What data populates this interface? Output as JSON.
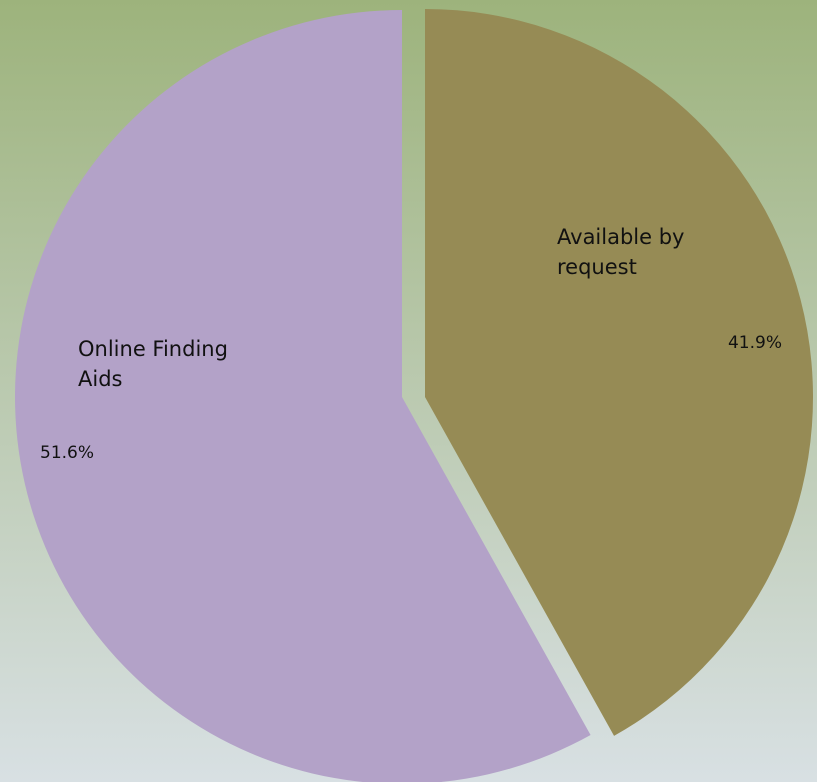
{
  "chart_data": {
    "type": "pie",
    "title": "",
    "exploded": true,
    "slices": [
      {
        "name": "Available by request",
        "name_lines": [
          "Available by",
          "request"
        ],
        "value": 41.9,
        "value_label": "41.9%",
        "color": "#968b55"
      },
      {
        "name": "Online Finding Aids",
        "name_lines": [
          "Online Finding",
          "Aids"
        ],
        "value": 51.6,
        "value_label": "51.6%",
        "color": "#b3a2c8"
      }
    ],
    "legend": "none",
    "grid": false,
    "background_gradient": [
      "#9db37c",
      "#d8e0e3"
    ]
  }
}
